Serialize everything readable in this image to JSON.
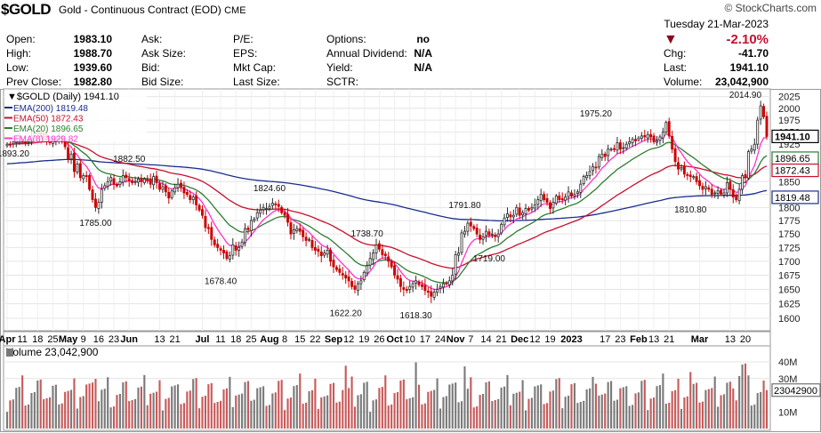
{
  "header": {
    "symbol": "$GOLD",
    "description": "Gold - Continuous Contract (EOD)",
    "exchange": "CME",
    "logo": "© StockCharts.com",
    "date": "Tuesday  21-Mar-2023",
    "change_pct": "-2.10%",
    "direction_icon": "down-triangle-icon",
    "fields": {
      "open_label": "Open:",
      "open": "1983.10",
      "high_label": "High:",
      "high": "1988.70",
      "low_label": "Low:",
      "low": "1939.60",
      "prev_label": "Prev Close:",
      "prev": "1982.80",
      "ask_label": "Ask:",
      "ask_size_label": "Ask Size:",
      "bid_label": "Bid:",
      "bid_size_label": "Bid Size:",
      "pe_label": "P/E:",
      "eps_label": "EPS:",
      "mktcap_label": "Mkt Cap:",
      "lastsize_label": "Last Size:",
      "options_label": "Options:",
      "options": "no",
      "div_label": "Annual Dividend:",
      "div": "N/A",
      "yield_label": "Yield:",
      "yield": "N/A",
      "sctr_label": "SCTR:",
      "chg_label": "Chg:",
      "chg": "-41.70",
      "last_label": "Last:",
      "last": "1941.10",
      "volume_label": "Volume:",
      "volume": "23,042,900"
    }
  },
  "colors": {
    "up": "#2a2a2a",
    "down": "#cc0000",
    "ema200": "#1a2d8c",
    "ema50": "#c8102e",
    "ema20": "#2e7d32",
    "ema8": "#ff33cc",
    "vol_up": "#7a7a7a",
    "vol_down": "#c85a5a"
  },
  "chart_data": [
    {
      "type": "candlestick",
      "title": "$GOLD (Daily) 1941.10",
      "legend": [
        "EMA(200) 1819.48",
        "EMA(50) 1872.43",
        "EMA(20) 1896.65",
        "EMA(8) 1929.82"
      ],
      "legend_position": "top-left",
      "ylim": [
        1585,
        2030
      ],
      "y_ticks": [
        1600,
        1625,
        1650,
        1675,
        1700,
        1725,
        1750,
        1775,
        1800,
        1825,
        1850,
        1875,
        1900,
        1925,
        1950,
        1975,
        2000,
        2025
      ],
      "y_scale": "log",
      "x_labels": [
        "Apr",
        "11",
        "18",
        "25",
        "May",
        "9",
        "16",
        "23",
        "Jun",
        "13",
        "21",
        "Jul",
        "11",
        "18",
        "25",
        "Aug",
        "8",
        "15",
        "22",
        "Sep",
        "12",
        "19",
        "26",
        "Oct",
        "10",
        "17",
        "24",
        "Nov",
        "7",
        "14",
        "21",
        "Dec",
        "12",
        "19",
        "2023",
        "17",
        "23",
        "Feb",
        "13",
        "21",
        "Mar",
        "13",
        "20"
      ],
      "x_bold": [
        "Apr",
        "May",
        "Jun",
        "Jul",
        "Aug",
        "Sep",
        "Oct",
        "Nov",
        "Dec",
        "2023",
        "Feb",
        "Mar"
      ],
      "x_label_index": [
        0,
        5,
        10,
        15,
        20,
        25,
        30,
        35,
        40,
        50,
        55,
        64,
        70,
        75,
        80,
        86,
        91,
        96,
        101,
        107,
        112,
        117,
        122,
        127,
        132,
        137,
        142,
        147,
        152,
        157,
        162,
        168,
        173,
        178,
        185,
        196,
        201,
        207,
        212,
        217,
        227,
        237,
        242
      ],
      "closes": [
        1925,
        1924,
        1930,
        1935,
        1937,
        1930,
        1928,
        1935,
        1942,
        1948,
        1950,
        1945,
        1944,
        1935,
        1928,
        1932,
        1935,
        1942,
        1930,
        1920,
        1895,
        1905,
        1870,
        1885,
        1858,
        1862,
        1860,
        1835,
        1815,
        1800,
        1810,
        1835,
        1842,
        1850,
        1858,
        1845,
        1842,
        1850,
        1862,
        1858,
        1852,
        1848,
        1850,
        1855,
        1850,
        1855,
        1852,
        1845,
        1860,
        1848,
        1835,
        1840,
        1830,
        1818,
        1832,
        1838,
        1845,
        1840,
        1828,
        1825,
        1815,
        1820,
        1805,
        1795,
        1785,
        1762,
        1760,
        1740,
        1730,
        1725,
        1720,
        1715,
        1705,
        1710,
        1730,
        1720,
        1725,
        1735,
        1760,
        1758,
        1775,
        1778,
        1790,
        1795,
        1800,
        1798,
        1802,
        1808,
        1805,
        1802,
        1790,
        1785,
        1772,
        1750,
        1758,
        1760,
        1755,
        1745,
        1738,
        1740,
        1725,
        1720,
        1718,
        1710,
        1715,
        1720,
        1700,
        1690,
        1685,
        1680,
        1675,
        1670,
        1665,
        1655,
        1650,
        1660,
        1665,
        1680,
        1692,
        1705,
        1715,
        1730,
        1722,
        1712,
        1710,
        1700,
        1690,
        1675,
        1668,
        1655,
        1650,
        1648,
        1655,
        1660,
        1665,
        1658,
        1655,
        1648,
        1645,
        1638,
        1645,
        1650,
        1655,
        1660,
        1660,
        1665,
        1675,
        1712,
        1715,
        1752,
        1755,
        1770,
        1765,
        1760,
        1750,
        1740,
        1745,
        1755,
        1748,
        1750,
        1745,
        1750,
        1768,
        1780,
        1788,
        1782,
        1785,
        1800,
        1785,
        1790,
        1798,
        1795,
        1800,
        1805,
        1815,
        1825,
        1815,
        1810,
        1798,
        1810,
        1822,
        1815,
        1815,
        1820,
        1830,
        1822,
        1825,
        1830,
        1845,
        1860,
        1862,
        1870,
        1880,
        1878,
        1900,
        1905,
        1900,
        1915,
        1915,
        1915,
        1928,
        1915,
        1918,
        1925,
        1930,
        1935,
        1932,
        1938,
        1942,
        1940,
        1945,
        1940,
        1930,
        1932,
        1940,
        1950,
        1970,
        1942,
        1915,
        1890,
        1875,
        1878,
        1865,
        1862,
        1860,
        1860,
        1850,
        1842,
        1835,
        1840,
        1835,
        1825,
        1828,
        1832,
        1826,
        1828,
        1848,
        1835,
        1820,
        1815,
        1835,
        1862,
        1858,
        1910,
        1915,
        1925,
        1975,
        2005,
        1982,
        1941
      ],
      "annotations": [
        {
          "text": "1893.20",
          "index": 2,
          "value": 1893.2
        },
        {
          "text": "1785.00",
          "index": 29,
          "value": 1785.0
        },
        {
          "text": "1882.50",
          "index": 40,
          "value": 1882.5
        },
        {
          "text": "1678.40",
          "index": 70,
          "value": 1678.4
        },
        {
          "text": "1824.60",
          "index": 86,
          "value": 1824.6
        },
        {
          "text": "1622.20",
          "index": 111,
          "value": 1622.2
        },
        {
          "text": "1738.70",
          "index": 118,
          "value": 1738.7
        },
        {
          "text": "1618.30",
          "index": 134,
          "value": 1618.3
        },
        {
          "text": "1791.80",
          "index": 150,
          "value": 1791.8
        },
        {
          "text": "1719.00",
          "index": 158,
          "value": 1719.0
        },
        {
          "text": "1975.20",
          "index": 193,
          "value": 1975.2
        },
        {
          "text": "1810.80",
          "index": 224,
          "value": 1810.8
        },
        {
          "text": "2014.90",
          "index": 242,
          "value": 2014.9
        }
      ],
      "price_boxes": [
        {
          "text": "1941.10",
          "value": 1941.1,
          "series": "last"
        },
        {
          "text": "1896.65",
          "value": 1896.65,
          "series": "ema20"
        },
        {
          "text": "1872.43",
          "value": 1872.43,
          "series": "ema50"
        },
        {
          "text": "1819.48",
          "value": 1819.48,
          "series": "ema200"
        }
      ]
    },
    {
      "type": "bar",
      "title": "Volume 23,042,900",
      "y_ticks": [
        "40M",
        "30M",
        "10M"
      ],
      "y_tick_values": [
        40000000,
        30000000,
        10000000
      ],
      "last_label": "23042900",
      "ylim": [
        0,
        48000000
      ]
    }
  ]
}
